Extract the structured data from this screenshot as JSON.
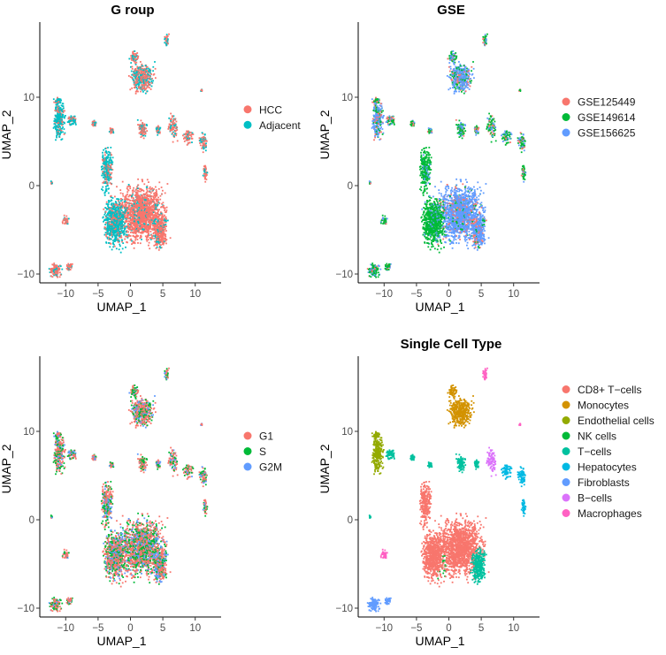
{
  "chart_data": [
    {
      "type": "scatter",
      "title": "G roup",
      "xlabel": "UMAP_1",
      "ylabel": "UMAP_2",
      "xlim": [
        -14,
        14
      ],
      "ylim": [
        -11,
        18.5
      ],
      "xticks": [
        -10,
        -5,
        0,
        5,
        10
      ],
      "yticks": [
        -10,
        0,
        10
      ],
      "tick_labels_x": [
        "−10",
        "−5",
        "0",
        "5",
        "10"
      ],
      "tick_labels_y": [
        "−10",
        "0",
        "10"
      ],
      "legend": [
        {
          "label": "HCC",
          "color": "#F8766D"
        },
        {
          "label": "Adjacent",
          "color": "#00BFC4"
        }
      ]
    },
    {
      "type": "scatter",
      "title": "GSE",
      "xlabel": "UMAP_1",
      "ylabel": "UMAP_2",
      "xlim": [
        -14,
        14
      ],
      "ylim": [
        -11,
        18.5
      ],
      "xticks": [
        -10,
        -5,
        0,
        5,
        10
      ],
      "yticks": [
        -10,
        0,
        10
      ],
      "tick_labels_x": [
        "−10",
        "−5",
        "0",
        "5",
        "10"
      ],
      "tick_labels_y": [
        "−10",
        "0",
        "10"
      ],
      "legend": [
        {
          "label": "GSE125449",
          "color": "#F8766D"
        },
        {
          "label": "GSE149614",
          "color": "#00BA38"
        },
        {
          "label": "GSE156625",
          "color": "#619CFF"
        }
      ]
    },
    {
      "type": "scatter",
      "title": "",
      "xlabel": "UMAP_1",
      "ylabel": "UMAP_2",
      "xlim": [
        -14,
        14
      ],
      "ylim": [
        -11,
        18.5
      ],
      "xticks": [
        -10,
        -5,
        0,
        5,
        10
      ],
      "yticks": [
        -10,
        0,
        10
      ],
      "tick_labels_x": [
        "−10",
        "−5",
        "0",
        "5",
        "10"
      ],
      "tick_labels_y": [
        "−10",
        "0",
        "10"
      ],
      "legend": [
        {
          "label": "G1",
          "color": "#F8766D"
        },
        {
          "label": "S",
          "color": "#00BA38"
        },
        {
          "label": "G2M",
          "color": "#619CFF"
        }
      ]
    },
    {
      "type": "scatter",
      "title": "Single Cell   Type",
      "xlabel": "UMAP_1",
      "ylabel": "UMAP_2",
      "xlim": [
        -14,
        14
      ],
      "ylim": [
        -11,
        18.5
      ],
      "xticks": [
        -10,
        -5,
        0,
        5,
        10
      ],
      "yticks": [
        -10,
        0,
        10
      ],
      "tick_labels_x": [
        "−10",
        "−5",
        "0",
        "5",
        "10"
      ],
      "tick_labels_y": [
        "−10",
        "0",
        "10"
      ],
      "legend": [
        {
          "label": "CD8+ T−cells",
          "color": "#F8766D"
        },
        {
          "label": "Monocytes",
          "color": "#D39200"
        },
        {
          "label": "Endothelial cells",
          "color": "#93AA00"
        },
        {
          "label": "NK cells",
          "color": "#00BA38"
        },
        {
          "label": "T−cells",
          "color": "#00C19F"
        },
        {
          "label": "Hepatocytes",
          "color": "#00B9E3"
        },
        {
          "label": "Fibroblasts",
          "color": "#619CFF"
        },
        {
          "label": "B−cells",
          "color": "#DB72FB"
        },
        {
          "label": "Macrophages",
          "color": "#FF61C3"
        }
      ]
    }
  ]
}
